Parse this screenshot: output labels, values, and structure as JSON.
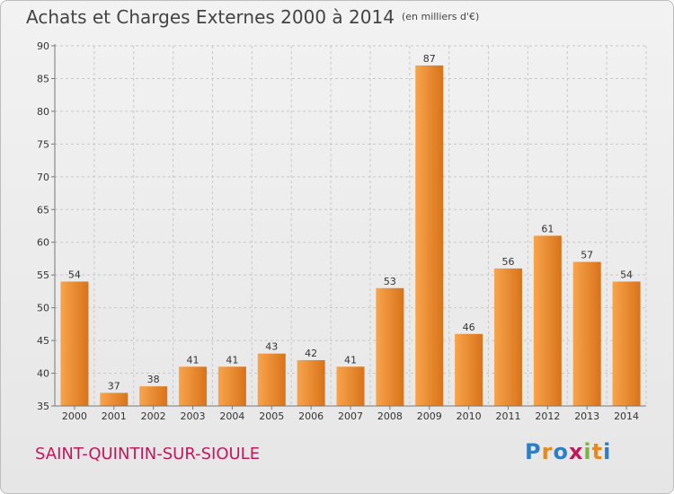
{
  "header": {
    "title": "Achats et Charges Externes 2000 à 2014",
    "unit": "(en milliers d'€)"
  },
  "footer": {
    "place": "SAINT-QUINTIN-SUR-SIOULE",
    "logo": "Proxiti",
    "logo_colors": [
      "#2e7dc6",
      "#e8891e",
      "#2e7dc6",
      "#c2185b",
      "#7cb342",
      "#e8891e",
      "#2e7dc6"
    ]
  },
  "colors": {
    "bar_light": "#f8a44c",
    "bar_dark": "#d8731a",
    "grid": "#c8c8c8",
    "title": "#444444",
    "place": "#c2185b"
  },
  "chart_data": {
    "type": "bar",
    "title": "Achats et Charges Externes 2000 à 2014",
    "subtitle": "(en milliers d'€)",
    "xlabel": "",
    "ylabel": "",
    "categories": [
      "2000",
      "2001",
      "2002",
      "2003",
      "2004",
      "2005",
      "2006",
      "2007",
      "2008",
      "2009",
      "2010",
      "2011",
      "2012",
      "2013",
      "2014"
    ],
    "values": [
      54,
      37,
      38,
      41,
      41,
      43,
      42,
      41,
      53,
      87,
      46,
      56,
      61,
      57,
      54
    ],
    "ylim": [
      35,
      90
    ],
    "yticks": [
      35,
      40,
      45,
      50,
      55,
      60,
      65,
      70,
      75,
      80,
      85,
      90
    ],
    "grid": true,
    "data_labels": true
  }
}
